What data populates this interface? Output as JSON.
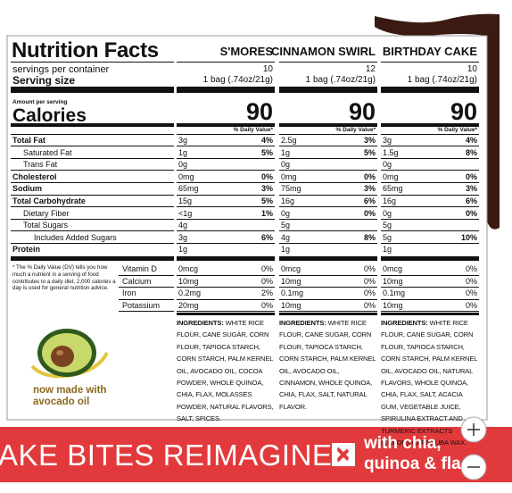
{
  "header": {
    "title": "Nutrition Facts",
    "products": [
      "S'MORES",
      "CINNAMON SWIRL",
      "BIRTHDAY CAKE"
    ]
  },
  "servings": {
    "per_container_label": "servings per container",
    "per_container": [
      "10",
      "12",
      "10"
    ],
    "size_label": "Serving size",
    "sizes": [
      "1 bag (.74oz/21g)",
      "1 bag (.74oz/21g)",
      "1 bag (.74oz/21g)"
    ]
  },
  "calories": {
    "amount_label": "Amount per serving",
    "label": "Calories",
    "values": [
      "90",
      "90",
      "90"
    ],
    "dv_headers": [
      "% Daily Value*",
      "% Daily Value*",
      "% Daily Value*"
    ]
  },
  "nutrients": [
    {
      "label": "Total Fat",
      "values": [
        [
          "3g",
          "4%"
        ],
        [
          "2.5g",
          "3%"
        ],
        [
          "3g",
          "4%"
        ]
      ]
    },
    {
      "label": "Saturated Fat",
      "values": [
        [
          "1g",
          "5%"
        ],
        [
          "1g",
          "5%"
        ],
        [
          "1.5g",
          "8%"
        ]
      ]
    },
    {
      "label": "Trans Fat",
      "values": [
        [
          "0g"
        ],
        [
          "0g"
        ],
        [
          "0g"
        ]
      ]
    },
    {
      "label": "Cholesterol",
      "values": [
        [
          "0mg",
          "0%"
        ],
        [
          "0mg",
          "0%"
        ],
        [
          "0mg",
          "0%"
        ]
      ]
    },
    {
      "label": "Sodium",
      "values": [
        [
          "65mg",
          "3%"
        ],
        [
          "75mg",
          "3%"
        ],
        [
          "65mg",
          "3%"
        ]
      ]
    },
    {
      "label": "Total Carbohydrate",
      "values": [
        [
          "15g",
          "5%"
        ],
        [
          "16g",
          "6%"
        ],
        [
          "16g",
          "6%"
        ]
      ]
    },
    {
      "label": "Dietary Fiber",
      "values": [
        [
          "<1g",
          "1%"
        ],
        [
          "0g",
          "0%"
        ],
        [
          "0g",
          "0%"
        ]
      ]
    },
    {
      "label": "Total Sugars",
      "values": [
        [
          "4g"
        ],
        [
          "5g"
        ],
        [
          "5g"
        ]
      ]
    },
    {
      "label": "Includes Added Sugars",
      "values": [
        [
          "3g",
          "6%"
        ],
        [
          "4g",
          "8%"
        ],
        [
          "5g",
          "10%"
        ]
      ]
    },
    {
      "label": "Protein",
      "values": [
        [
          "1g"
        ],
        [
          "1g"
        ],
        [
          "1g"
        ]
      ]
    }
  ],
  "footnote": "* The % Daily Value (DV) tells you how much a nutrient in a serving of food contributes to a daily diet. 2,000 calories a day is used for general nutrition advice.",
  "vitamins": [
    {
      "label": "Vitamin D",
      "values": [
        [
          "0mcg",
          "0%"
        ],
        [
          "0mcg",
          "0%"
        ],
        [
          "0mcg",
          "0%"
        ]
      ]
    },
    {
      "label": "Calcium",
      "values": [
        [
          "10mg",
          "0%"
        ],
        [
          "10mg",
          "0%"
        ],
        [
          "10mg",
          "0%"
        ]
      ]
    },
    {
      "label": "Iron",
      "values": [
        [
          "0.2mg",
          "2%"
        ],
        [
          "0.1mg",
          "0%"
        ],
        [
          "0.1mg",
          "0%"
        ]
      ]
    },
    {
      "label": "Potassium",
      "values": [
        [
          "20mg",
          "0%"
        ],
        [
          "10mg",
          "0%"
        ],
        [
          "10mg",
          "0%"
        ]
      ]
    }
  ],
  "ingredients": {
    "label": "INGREDIENTS:",
    "texts": [
      "WHITE RICE FLOUR, CANE SUGAR, CORN FLOUR, TAPIOCA STARCH, CORN STARCH, PALM KERNEL OIL, AVOCADO OIL, COCOA POWDER, WHOLE QUINOA, CHIA, FLAX, MOLASSES POWDER, NATURAL FLAVORS, SALT, SPICES.",
      "WHITE RICE FLOUR, CANE SUGAR, CORN FLOUR, TAPIOCA STARCH, CORN STARCH, PALM KERNEL OIL, AVOCADO OIL, CINNAMON, WHOLE QUINOA, CHIA, FLAX, SALT, NATURAL FLAVOR.",
      "WHITE RICE FLOUR, CANE SUGAR, CORN FLOUR, TAPIOCA STARCH, CORN STARCH, PALM KERNEL OIL, AVOCADO OIL, NATURAL FLAVORS, WHOLE QUINOA, CHIA, FLAX, SALT, ACACIA GUM, VEGETABLE JUICE, SPIRULINA EXTRACT AND TURMERIC EXTRACTS (COLOR), CARNAUBA WAX."
    ]
  },
  "badge": {
    "line1": "now made with",
    "line2": "avocado oil"
  },
  "banner": {
    "headline": "AKE BITES REIMAGINED",
    "line1": "with chia,",
    "line2": "quinoa & fla"
  }
}
